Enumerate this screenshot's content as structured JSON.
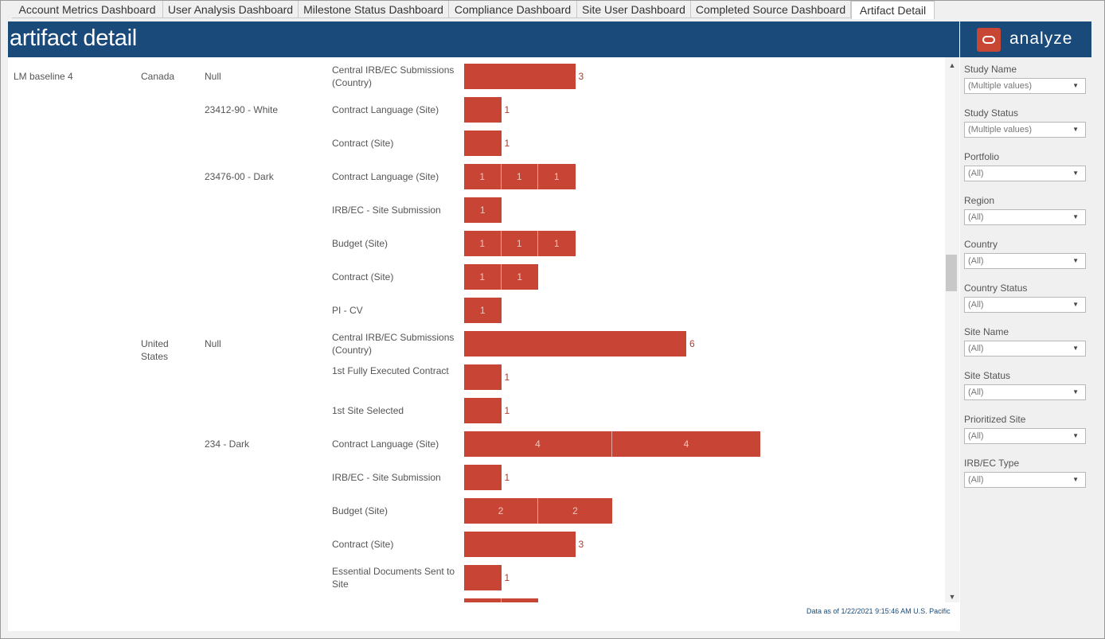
{
  "tabs": [
    {
      "label": "Account Metrics Dashboard",
      "active": false
    },
    {
      "label": "User Analysis Dashboard",
      "active": false
    },
    {
      "label": "Milestone Status Dashboard",
      "active": false
    },
    {
      "label": "Compliance Dashboard",
      "active": false
    },
    {
      "label": "Site User Dashboard",
      "active": false
    },
    {
      "label": "Completed Source Dashboard",
      "active": false
    },
    {
      "label": "Artifact Detail",
      "active": true
    }
  ],
  "header": {
    "title": "artifact detail"
  },
  "brand": {
    "name": "analyze",
    "logo_icon": "oracle-ring-icon",
    "logo_color": "#c74634"
  },
  "colors": {
    "header": "#1a4a7a",
    "bar": "#c84535"
  },
  "viz": {
    "study": "LM baseline 4",
    "countries": [
      "Canada",
      "United States"
    ],
    "sites": [
      "Null",
      "23412-90 - White",
      "23476-00 - Dark",
      "Null",
      "234 - Dark"
    ],
    "rows": [
      {
        "label": "Central IRB/EC Submissions (Country)",
        "segments": [
          3
        ],
        "outside": true
      },
      {
        "label": "Contract Language (Site)",
        "segments": [
          1
        ],
        "outside": true
      },
      {
        "label": "Contract (Site)",
        "segments": [
          1
        ],
        "outside": true
      },
      {
        "label": "Contract Language (Site)",
        "segments": [
          1,
          1,
          1
        ],
        "outside": false
      },
      {
        "label": "IRB/EC - Site Submission",
        "segments": [
          1
        ],
        "outside": false
      },
      {
        "label": "Budget (Site)",
        "segments": [
          1,
          1,
          1
        ],
        "outside": false
      },
      {
        "label": "Contract (Site)",
        "segments": [
          1,
          1
        ],
        "outside": false
      },
      {
        "label": "PI - CV",
        "segments": [
          1
        ],
        "outside": false
      },
      {
        "label": "Central IRB/EC Submissions (Country)",
        "segments": [
          6
        ],
        "outside": true
      },
      {
        "label": "1st Fully Executed Contract",
        "segments": [
          1
        ],
        "outside": true
      },
      {
        "label": "1st Site Selected",
        "segments": [
          1
        ],
        "outside": true
      },
      {
        "label": "Contract Language (Site)",
        "segments": [
          4,
          4
        ],
        "outside": false
      },
      {
        "label": "IRB/EC - Site Submission",
        "segments": [
          1
        ],
        "outside": true
      },
      {
        "label": "Budget (Site)",
        "segments": [
          2,
          2
        ],
        "outside": false
      },
      {
        "label": "Contract (Site)",
        "segments": [
          3
        ],
        "outside": true
      },
      {
        "label": "Essential Documents Sent to Site",
        "segments": [
          1
        ],
        "outside": true
      },
      {
        "label": "",
        "segments": [
          1,
          1
        ],
        "outside": false
      }
    ]
  },
  "footnote": "Data as of 1/22/2021 9:15:46 AM U.S. Pacific",
  "filters": [
    {
      "label": "Study Name",
      "value": "(Multiple values)"
    },
    {
      "label": "Study Status",
      "value": "(Multiple values)"
    },
    {
      "label": "Portfolio",
      "value": "(All)"
    },
    {
      "label": "Region",
      "value": "(All)"
    },
    {
      "label": "Country",
      "value": "(All)"
    },
    {
      "label": "Country Status",
      "value": "(All)"
    },
    {
      "label": "Site Name",
      "value": "(All)"
    },
    {
      "label": "Site Status",
      "value": "(All)"
    },
    {
      "label": "Prioritized Site",
      "value": "(All)"
    },
    {
      "label": "IRB/EC Type",
      "value": "(All)"
    }
  ]
}
